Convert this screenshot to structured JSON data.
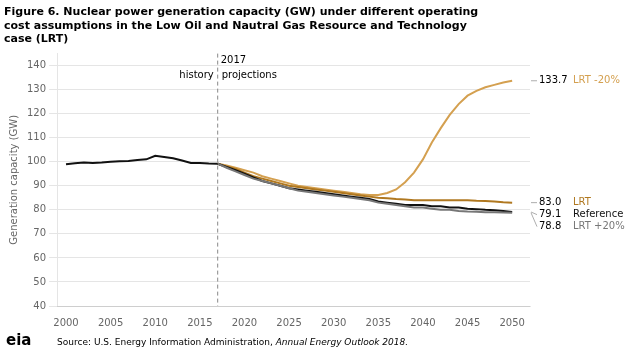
{
  "chart_data": {
    "type": "line",
    "title": "Figure 6. Nuclear power generation capacity (GW) under different operating\ncost assumptions in the Low Oil and Nautral Gas Resource and Technology\ncase (LRT)",
    "ylabel": "Generation capacity (GW)",
    "xlim": [
      1999,
      2052
    ],
    "xticks": [
      2000,
      2005,
      2010,
      2015,
      2020,
      2025,
      2030,
      2035,
      2040,
      2045,
      2050
    ],
    "ylim": [
      40,
      145
    ],
    "yticks": [
      40,
      50,
      60,
      70,
      80,
      90,
      100,
      110,
      120,
      130,
      140
    ],
    "grid": "y",
    "vline": {
      "x": 2017,
      "label": "2017"
    },
    "history_label": "history",
    "projections_label": "projections",
    "source": "Source: U.S. Energy Information Administration, ",
    "source_italic": "Annual Energy Outlook 2018.",
    "logo": "eia",
    "series": [
      {
        "color": "#111111",
        "x": [
          2000,
          2001,
          2002,
          2003,
          2004,
          2005,
          2006,
          2007,
          2008,
          2009,
          2010,
          2011,
          2012,
          2013,
          2014,
          2015,
          2016,
          2017
        ],
        "values": [
          99.0,
          99.4,
          99.7,
          99.5,
          99.7,
          100.0,
          100.2,
          100.3,
          100.7,
          101.0,
          102.5,
          102.0,
          101.5,
          100.5,
          99.5,
          99.5,
          99.3,
          99.2
        ]
      },
      {
        "name": "LRT +20%",
        "color": "#777777",
        "x": [
          2017,
          2018,
          2019,
          2020,
          2021,
          2022,
          2023,
          2024,
          2025,
          2026,
          2027,
          2028,
          2029,
          2030,
          2031,
          2032,
          2033,
          2034,
          2035,
          2036,
          2037,
          2038,
          2039,
          2040,
          2041,
          2042,
          2043,
          2044,
          2045,
          2046,
          2047,
          2048,
          2049,
          2050
        ],
        "values": [
          99.2,
          97.5,
          96.0,
          94.5,
          93.0,
          92.0,
          91.0,
          90.0,
          89.0,
          88.0,
          87.5,
          87.0,
          86.5,
          86.0,
          85.5,
          85.0,
          84.5,
          84.0,
          83.0,
          82.5,
          82.0,
          81.5,
          81.0,
          81.0,
          80.5,
          80.0,
          80.0,
          79.5,
          79.3,
          79.2,
          79.0,
          79.0,
          78.9,
          78.8
        ],
        "end_label": {
          "value": 78.8,
          "label": "78.8"
        }
      },
      {
        "name": "Reference",
        "color": "#111111",
        "x": [
          2017,
          2018,
          2019,
          2020,
          2021,
          2022,
          2023,
          2024,
          2025,
          2026,
          2027,
          2028,
          2029,
          2030,
          2031,
          2032,
          2033,
          2034,
          2035,
          2036,
          2037,
          2038,
          2039,
          2040,
          2041,
          2042,
          2043,
          2044,
          2045,
          2046,
          2047,
          2048,
          2049,
          2050
        ],
        "values": [
          99.2,
          97.8,
          96.5,
          95.0,
          93.5,
          92.0,
          91.0,
          90.0,
          89.0,
          88.5,
          88.0,
          87.5,
          87.0,
          86.5,
          86.0,
          85.5,
          85.0,
          84.5,
          83.5,
          83.0,
          82.5,
          82.0,
          82.0,
          82.0,
          81.5,
          81.5,
          81.0,
          81.0,
          80.5,
          80.3,
          80.0,
          79.8,
          79.5,
          79.1
        ],
        "end_label": {
          "value": 79.1,
          "label": "79.1"
        }
      },
      {
        "name": "LRT",
        "color": "#b07820",
        "x": [
          2017,
          2018,
          2019,
          2020,
          2021,
          2022,
          2023,
          2024,
          2025,
          2026,
          2027,
          2028,
          2029,
          2030,
          2031,
          2032,
          2033,
          2034,
          2035,
          2036,
          2037,
          2038,
          2039,
          2040,
          2041,
          2042,
          2043,
          2044,
          2045,
          2046,
          2047,
          2048,
          2049,
          2050
        ],
        "values": [
          99.2,
          98.0,
          97.0,
          95.5,
          94.0,
          93.0,
          92.0,
          91.0,
          90.0,
          89.5,
          89.0,
          88.5,
          88.0,
          87.5,
          87.0,
          86.5,
          86.0,
          85.5,
          85.0,
          84.8,
          84.5,
          84.3,
          84.0,
          84.0,
          84.0,
          84.0,
          84.0,
          84.0,
          84.0,
          83.8,
          83.7,
          83.5,
          83.2,
          83.0
        ],
        "end_label": {
          "value": 83.0,
          "label": "83.0"
        }
      },
      {
        "name": "LRT -20%",
        "color": "#d4a050",
        "x": [
          2017,
          2018,
          2019,
          2020,
          2021,
          2022,
          2023,
          2024,
          2025,
          2026,
          2027,
          2028,
          2029,
          2030,
          2031,
          2032,
          2033,
          2034,
          2035,
          2036,
          2037,
          2038,
          2039,
          2040,
          2041,
          2042,
          2043,
          2044,
          2045,
          2046,
          2047,
          2048,
          2049,
          2050
        ],
        "values": [
          99.2,
          98.5,
          97.5,
          96.5,
          95.5,
          94.0,
          93.0,
          92.0,
          91.0,
          90.0,
          89.5,
          89.0,
          88.5,
          88.0,
          87.5,
          87.0,
          86.5,
          86.2,
          86.2,
          87.0,
          88.5,
          91.5,
          95.5,
          101.0,
          108.0,
          114.0,
          119.5,
          124.0,
          127.5,
          129.5,
          131.0,
          132.0,
          133.0,
          133.7
        ],
        "end_label": {
          "value": 133.7,
          "label": "133.7"
        }
      }
    ]
  }
}
